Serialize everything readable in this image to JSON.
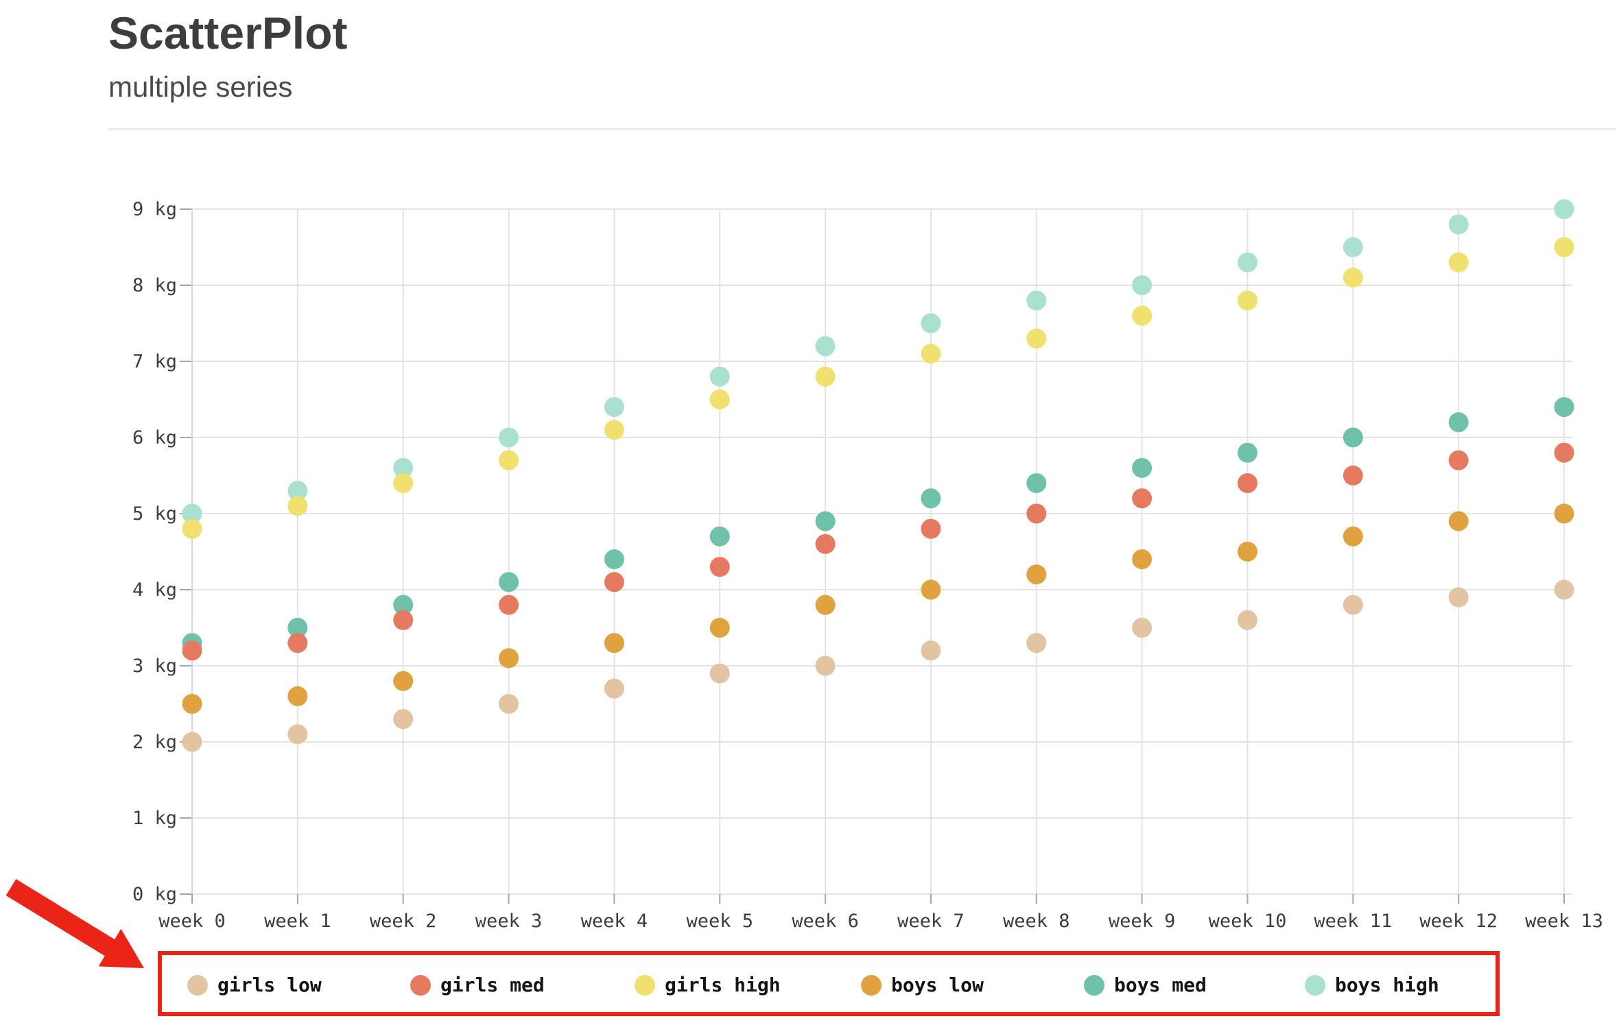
{
  "page": {
    "title": "ScatterPlot",
    "subtitle": "multiple series"
  },
  "chart_data": {
    "type": "scatter",
    "title": "ScatterPlot",
    "subtitle": "multiple series",
    "x_labels": [
      "week 0",
      "week 1",
      "week 2",
      "week 3",
      "week 4",
      "week 5",
      "week 6",
      "week 7",
      "week 8",
      "week 9",
      "week 10",
      "week 11",
      "week 12",
      "week 13"
    ],
    "y_unit": "kg",
    "ylim": [
      0,
      9
    ],
    "y_tick_step": 1,
    "y_tick_labels": [
      "0 kg",
      "1 kg",
      "2 kg",
      "3 kg",
      "4 kg",
      "5 kg",
      "6 kg",
      "7 kg",
      "8 kg",
      "9 kg"
    ],
    "grid": true,
    "legend_position": "bottom",
    "series": [
      {
        "name": "girls low",
        "color": "#e2c4a3",
        "values": [
          2.0,
          2.1,
          2.3,
          2.5,
          2.7,
          2.9,
          3.0,
          3.2,
          3.3,
          3.5,
          3.6,
          3.8,
          3.9,
          4.0
        ]
      },
      {
        "name": "girls med",
        "color": "#e57a60",
        "values": [
          3.2,
          3.3,
          3.6,
          3.8,
          4.1,
          4.3,
          4.6,
          4.8,
          5.0,
          5.2,
          5.4,
          5.5,
          5.7,
          5.8
        ]
      },
      {
        "name": "girls high",
        "color": "#efe070",
        "values": [
          4.8,
          5.1,
          5.4,
          5.7,
          6.1,
          6.5,
          6.8,
          7.1,
          7.3,
          7.6,
          7.8,
          8.1,
          8.3,
          8.5
        ]
      },
      {
        "name": "boys low",
        "color": "#e0a23f",
        "values": [
          2.5,
          2.6,
          2.8,
          3.1,
          3.3,
          3.5,
          3.8,
          4.0,
          4.2,
          4.4,
          4.5,
          4.7,
          4.9,
          5.0
        ]
      },
      {
        "name": "boys med",
        "color": "#6fc2a9",
        "values": [
          3.3,
          3.5,
          3.8,
          4.1,
          4.4,
          4.7,
          4.9,
          5.2,
          5.4,
          5.6,
          5.8,
          6.0,
          6.2,
          6.4
        ]
      },
      {
        "name": "boys high",
        "color": "#a9e0d0",
        "values": [
          5.0,
          5.3,
          5.6,
          6.0,
          6.4,
          6.8,
          7.2,
          7.5,
          7.8,
          8.0,
          8.3,
          8.5,
          8.8,
          9.0
        ]
      }
    ]
  },
  "annotation": {
    "color": "#ea2417",
    "target": "legend"
  }
}
